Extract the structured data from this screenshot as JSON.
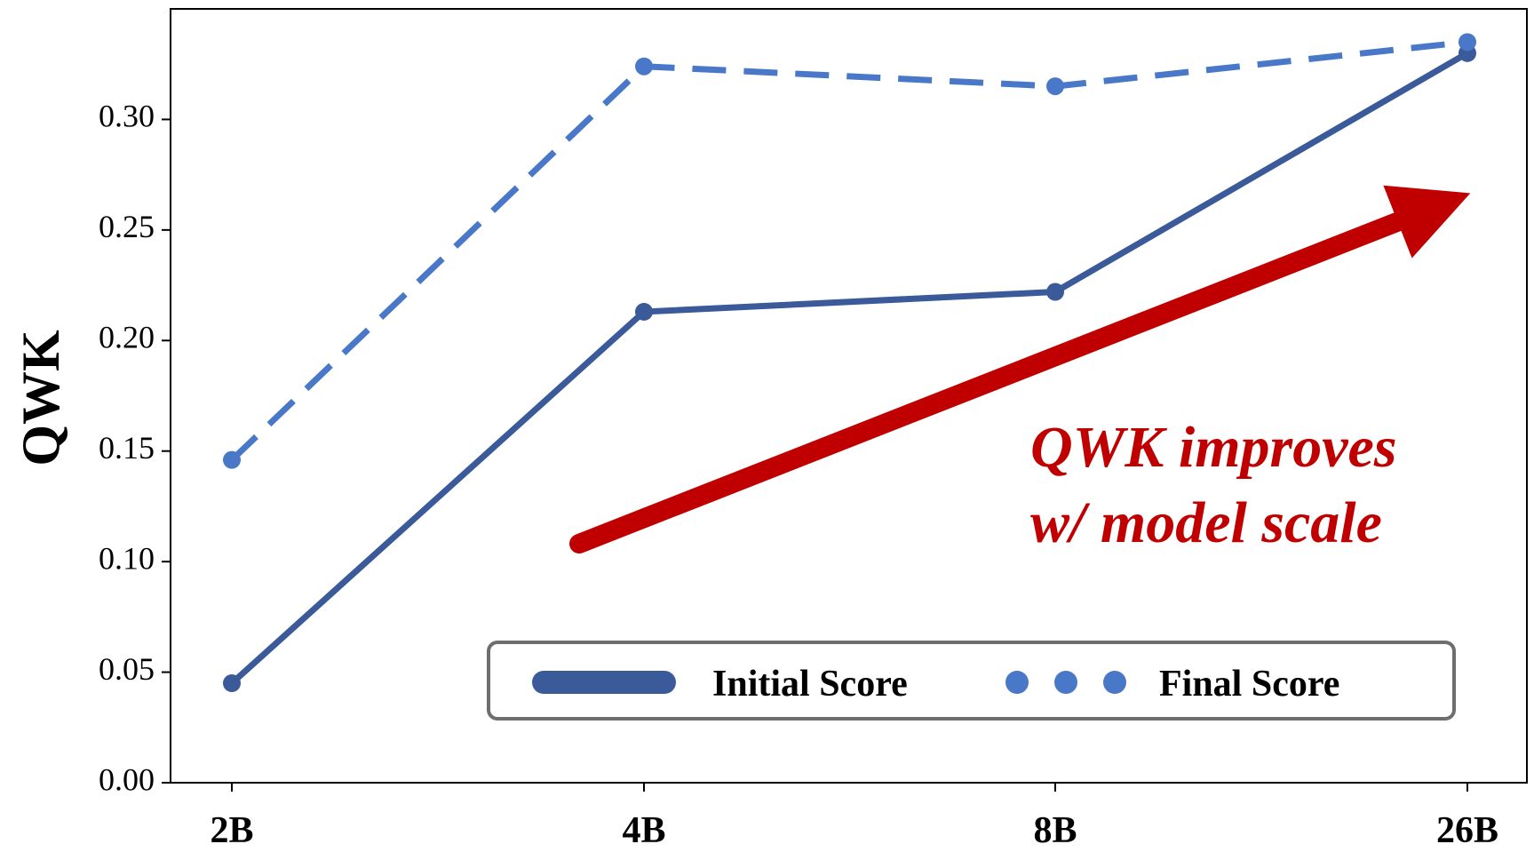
{
  "chart_data": {
    "type": "line",
    "categories": [
      "2B",
      "4B",
      "8B",
      "26B"
    ],
    "series": [
      {
        "name": "Initial Score",
        "values": [
          0.045,
          0.213,
          0.222,
          0.33
        ],
        "color": "#3b5a9a",
        "style": "solid"
      },
      {
        "name": "Final Score",
        "values": [
          0.146,
          0.324,
          0.315,
          0.335
        ],
        "color": "#4a78c8",
        "style": "dashed"
      }
    ],
    "ylabel": "QWK",
    "xlabel": "",
    "ylim": [
      0,
      0.35
    ],
    "yticks": [
      "0.00",
      "0.05",
      "0.10",
      "0.15",
      "0.20",
      "0.25",
      "0.30"
    ],
    "grid": false,
    "legend": {
      "placement": "bottom-right",
      "items": [
        "Initial Score",
        "Final Score"
      ]
    },
    "annotation": {
      "lines": [
        "QWK improves",
        "w/ model scale"
      ],
      "color": "#c00000",
      "arrow": "trend-up"
    }
  }
}
